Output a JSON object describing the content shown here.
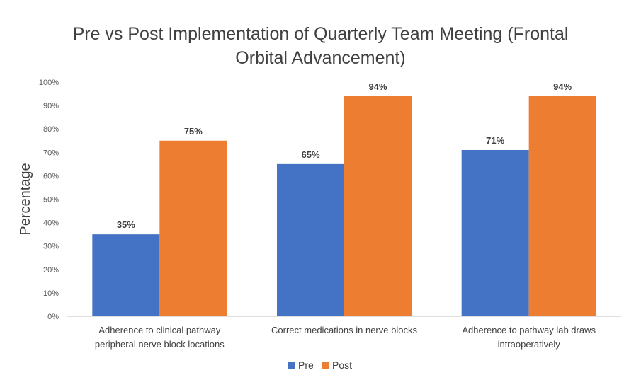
{
  "chart_data": {
    "type": "bar",
    "title_lines": [
      "Pre vs Post Implementation of Quarterly Team Meeting (Frontal",
      "Orbital Advancement)"
    ],
    "ylabel": "Percentage",
    "xlabel": "",
    "ylim": [
      0,
      100
    ],
    "yticks": [
      "0%",
      "10%",
      "20%",
      "30%",
      "40%",
      "50%",
      "60%",
      "70%",
      "80%",
      "90%",
      "100%"
    ],
    "categories": [
      [
        "Adherence to clinical pathway",
        "peripheral nerve block locations"
      ],
      [
        "Correct medications in nerve blocks"
      ],
      [
        "Adherence to pathway lab draws",
        "intraoperatively"
      ]
    ],
    "series": [
      {
        "name": "Pre",
        "color": "#4472C4",
        "values": [
          35,
          65,
          71
        ],
        "labels": [
          "35%",
          "65%",
          "71%"
        ]
      },
      {
        "name": "Post",
        "color": "#ED7D31",
        "values": [
          75,
          94,
          94
        ],
        "labels": [
          "75%",
          "94%",
          "94%"
        ]
      }
    ],
    "legend": "bottom",
    "grid": false
  }
}
